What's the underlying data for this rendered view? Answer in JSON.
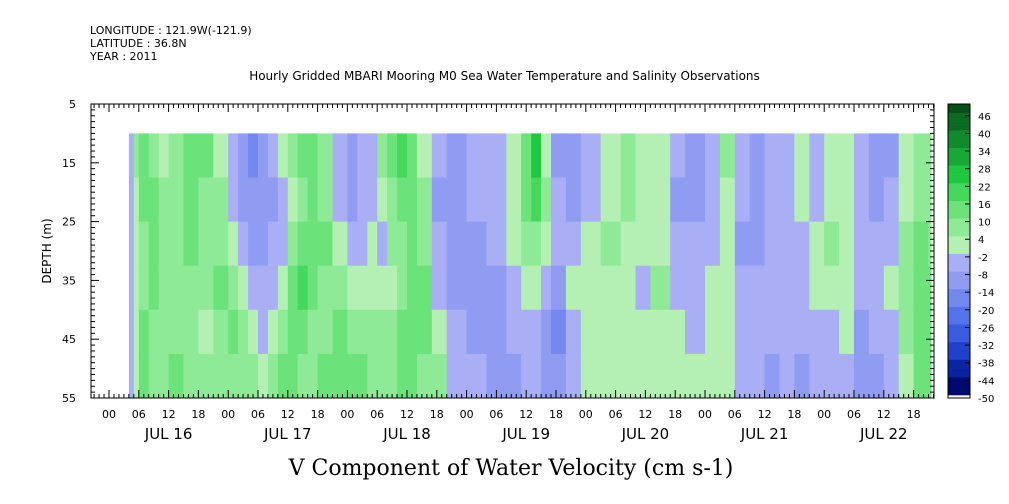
{
  "meta": {
    "longitude": "LONGITUDE : 121.9W(-121.9)",
    "latitude": "LATITUDE : 36.8N",
    "year": "YEAR : 2011"
  },
  "chart_data": {
    "type": "heatmap",
    "title": "Hourly Gridded MBARI Mooring M0 Sea Water Temperature and Salinity Observations",
    "xlabel": "V Component of Water Velocity (cm s-1)",
    "ylabel": "DEPTH (m)",
    "y_ticks": [
      5,
      15,
      25,
      35,
      45,
      55
    ],
    "ylim": [
      5,
      55
    ],
    "y_inverted": true,
    "x_hour_ticks": [
      "00",
      "06",
      "12",
      "18",
      "00",
      "06",
      "12",
      "18",
      "00",
      "06",
      "12",
      "18",
      "00",
      "06",
      "12",
      "18",
      "00",
      "06",
      "12",
      "18",
      "00",
      "06",
      "12",
      "18",
      "00",
      "06",
      "12",
      "18",
      "00",
      "06",
      "12",
      "18",
      "00",
      "06",
      "12",
      "18"
    ],
    "x_day_labels": [
      "JUL 16",
      "JUL 17",
      "JUL 18",
      "JUL 19",
      "JUL 20",
      "JUL 21",
      "JUL 22"
    ],
    "data_depth_range": [
      10,
      55
    ],
    "colorbar": {
      "labels": [
        "46",
        "40",
        "34",
        "28",
        "22",
        "16",
        "10",
        "4",
        "-2",
        "-8",
        "-14",
        "-20",
        "-26",
        "-32",
        "-38",
        "-44",
        "-50"
      ],
      "range": [
        -50,
        50
      ],
      "step": 3
    },
    "columns": [
      {
        "t": "JUL 16 04",
        "v": [
          -2,
          -2,
          -3,
          -3,
          -4,
          -5
        ]
      },
      {
        "t": "JUL 16 05",
        "v": [
          6,
          4,
          2,
          1,
          1,
          3
        ]
      },
      {
        "t": "JUL 16 06",
        "v": [
          14,
          12,
          10,
          10,
          11,
          12
        ]
      },
      {
        "t": "JUL 16 08",
        "v": [
          10,
          12,
          14,
          12,
          10,
          8
        ]
      },
      {
        "t": "JUL 16 10",
        "v": [
          4,
          6,
          10,
          10,
          8,
          6
        ]
      },
      {
        "t": "JUL 16 12",
        "v": [
          10,
          8,
          6,
          8,
          10,
          12
        ]
      },
      {
        "t": "JUL 16 15",
        "v": [
          14,
          12,
          12,
          10,
          8,
          8
        ]
      },
      {
        "t": "JUL 16 18",
        "v": [
          12,
          10,
          8,
          6,
          4,
          6
        ]
      },
      {
        "t": "JUL 16 21",
        "v": [
          4,
          6,
          10,
          12,
          10,
          8
        ]
      },
      {
        "t": "JUL 17 00",
        "v": [
          -4,
          -2,
          4,
          8,
          12,
          10
        ]
      },
      {
        "t": "JUL 17 02",
        "v": [
          -10,
          -8,
          -4,
          2,
          6,
          10
        ]
      },
      {
        "t": "JUL 17 04",
        "v": [
          -14,
          -12,
          -8,
          -4,
          2,
          6
        ]
      },
      {
        "t": "JUL 17 06",
        "v": [
          -10,
          -10,
          -8,
          -6,
          -2,
          4
        ]
      },
      {
        "t": "JUL 17 08",
        "v": [
          -6,
          -8,
          -6,
          -4,
          2,
          8
        ]
      },
      {
        "t": "JUL 17 10",
        "v": [
          2,
          -2,
          -2,
          4,
          10,
          14
        ]
      },
      {
        "t": "JUL 17 12",
        "v": [
          6,
          4,
          6,
          12,
          14,
          12
        ]
      },
      {
        "t": "JUL 17 14",
        "v": [
          12,
          10,
          12,
          18,
          14,
          10
        ]
      },
      {
        "t": "JUL 17 16",
        "v": [
          14,
          14,
          16,
          14,
          10,
          8
        ]
      },
      {
        "t": "JUL 17 18",
        "v": [
          8,
          10,
          12,
          10,
          8,
          12
        ]
      },
      {
        "t": "JUL 17 21",
        "v": [
          -6,
          -4,
          2,
          6,
          12,
          16
        ]
      },
      {
        "t": "JUL 18 00",
        "v": [
          -12,
          -10,
          -6,
          0,
          8,
          14
        ]
      },
      {
        "t": "JUL 18 02",
        "v": [
          -6,
          -6,
          -4,
          4,
          10,
          12
        ]
      },
      {
        "t": "JUL 18 04",
        "v": [
          -2,
          -2,
          0,
          4,
          8,
          10
        ]
      },
      {
        "t": "JUL 18 06",
        "v": [
          6,
          2,
          -2,
          0,
          6,
          8
        ]
      },
      {
        "t": "JUL 18 08",
        "v": [
          16,
          10,
          6,
          4,
          6,
          10
        ]
      },
      {
        "t": "JUL 18 10",
        "v": [
          20,
          16,
          10,
          8,
          12,
          14
        ]
      },
      {
        "t": "JUL 18 12",
        "v": [
          12,
          14,
          14,
          12,
          14,
          12
        ]
      },
      {
        "t": "JUL 18 14",
        "v": [
          4,
          6,
          10,
          14,
          12,
          8
        ]
      },
      {
        "t": "JUL 18 17",
        "v": [
          -6,
          -8,
          -6,
          -2,
          4,
          8
        ]
      },
      {
        "t": "JUL 18 20",
        "v": [
          -8,
          -10,
          -12,
          -10,
          -6,
          -2
        ]
      },
      {
        "t": "JUL 19 00",
        "v": [
          -6,
          -6,
          -8,
          -10,
          -8,
          -6
        ]
      },
      {
        "t": "JUL 19 04",
        "v": [
          -4,
          -2,
          -4,
          -8,
          -10,
          -8
        ]
      },
      {
        "t": "JUL 19 08",
        "v": [
          2,
          4,
          2,
          -2,
          -6,
          -8
        ]
      },
      {
        "t": "JUL 19 11",
        "v": [
          14,
          12,
          6,
          2,
          -2,
          -4
        ]
      },
      {
        "t": "JUL 19 13",
        "v": [
          24,
          20,
          10,
          2,
          -4,
          -6
        ]
      },
      {
        "t": "JUL 19 15",
        "v": [
          4,
          6,
          2,
          -6,
          -10,
          -8
        ]
      },
      {
        "t": "JUL 19 17",
        "v": [
          -8,
          -6,
          -4,
          -8,
          -14,
          -10
        ]
      },
      {
        "t": "JUL 19 20",
        "v": [
          -10,
          -8,
          -2,
          2,
          -2,
          -4
        ]
      },
      {
        "t": "JUL 19 23",
        "v": [
          -6,
          -4,
          0,
          4,
          2,
          0
        ]
      },
      {
        "t": "JUL 20 03",
        "v": [
          2,
          4,
          6,
          4,
          2,
          4
        ]
      },
      {
        "t": "JUL 20 07",
        "v": [
          8,
          6,
          4,
          2,
          2,
          4
        ]
      },
      {
        "t": "JUL 20 10",
        "v": [
          4,
          2,
          0,
          -2,
          0,
          2
        ]
      },
      {
        "t": "JUL 20 13",
        "v": [
          0,
          2,
          4,
          6,
          4,
          2
        ]
      },
      {
        "t": "JUL 20 17",
        "v": [
          -6,
          -8,
          -6,
          -2,
          2,
          4
        ]
      },
      {
        "t": "JUL 20 20",
        "v": [
          -8,
          -8,
          -6,
          -4,
          -2,
          0
        ]
      },
      {
        "t": "JUL 21 00",
        "v": [
          -2,
          -4,
          -2,
          2,
          4,
          2
        ]
      },
      {
        "t": "JUL 21 03",
        "v": [
          6,
          4,
          2,
          2,
          2,
          0
        ]
      },
      {
        "t": "JUL 21 06",
        "v": [
          -4,
          -6,
          -8,
          -6,
          -4,
          -2
        ]
      },
      {
        "t": "JUL 21 09",
        "v": [
          -12,
          -10,
          -8,
          -6,
          -4,
          -2
        ]
      },
      {
        "t": "JUL 21 12",
        "v": [
          -6,
          -4,
          -2,
          -4,
          -6,
          -8
        ]
      },
      {
        "t": "JUL 21 15",
        "v": [
          -2,
          -4,
          -6,
          -4,
          -2,
          -4
        ]
      },
      {
        "t": "JUL 21 18",
        "v": [
          2,
          0,
          -2,
          -4,
          -6,
          -8
        ]
      },
      {
        "t": "JUL 21 21",
        "v": [
          -4,
          -2,
          2,
          0,
          -4,
          -6
        ]
      },
      {
        "t": "JUL 22 00",
        "v": [
          2,
          4,
          6,
          2,
          -2,
          -4
        ]
      },
      {
        "t": "JUL 22 03",
        "v": [
          0,
          2,
          4,
          4,
          0,
          -2
        ]
      },
      {
        "t": "JUL 22 06",
        "v": [
          -6,
          -4,
          -2,
          -4,
          -8,
          -10
        ]
      },
      {
        "t": "JUL 22 09",
        "v": [
          -10,
          -8,
          -4,
          -2,
          -6,
          -8
        ]
      },
      {
        "t": "JUL 22 12",
        "v": [
          -8,
          -6,
          -2,
          2,
          -2,
          -4
        ]
      },
      {
        "t": "JUL 22 15",
        "v": [
          2,
          4,
          6,
          8,
          6,
          4
        ]
      },
      {
        "t": "JUL 22 18",
        "v": [
          8,
          10,
          12,
          14,
          14,
          12
        ]
      },
      {
        "t": "JUL 22 21",
        "v": [
          6,
          8,
          10,
          12,
          14,
          14
        ]
      }
    ]
  }
}
